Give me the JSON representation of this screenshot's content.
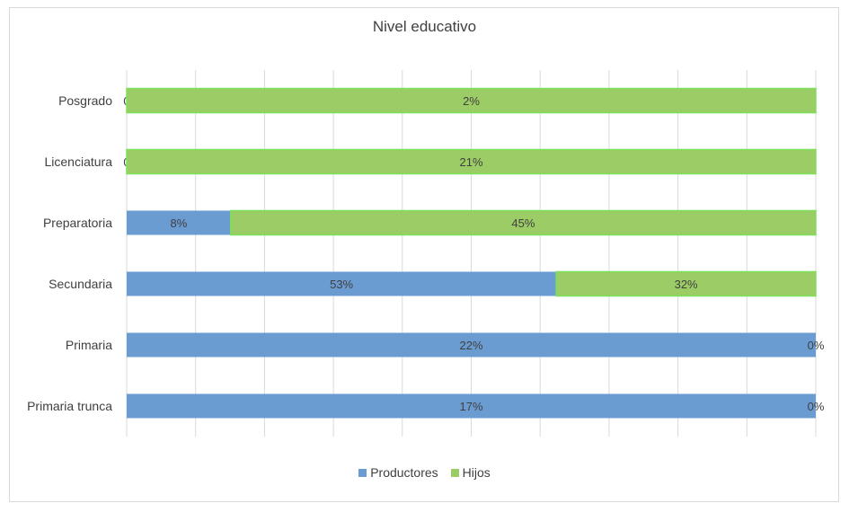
{
  "chart_data": {
    "type": "bar",
    "orientation": "horizontal",
    "stacked": "percent",
    "title": "Nivel educativo",
    "categories": [
      "Posgrado",
      "Licenciatura",
      "Preparatoria",
      "Secundaria",
      "Primaria",
      "Primaria trunca"
    ],
    "series": [
      {
        "name": "Productores",
        "color": "#6a9bd1",
        "values": [
          0,
          0,
          8,
          53,
          22,
          17
        ],
        "labels": [
          "0",
          "0",
          "8%",
          "53%",
          "22%",
          "17%"
        ]
      },
      {
        "name": "Hijos",
        "color": "#9ccc65",
        "values": [
          2,
          21,
          45,
          32,
          0,
          0
        ],
        "labels": [
          "2%",
          "21%",
          "45%",
          "32%",
          "0%",
          "0%"
        ]
      }
    ],
    "xlim": [
      0,
      100
    ],
    "grid": true,
    "legend": "bottom"
  }
}
